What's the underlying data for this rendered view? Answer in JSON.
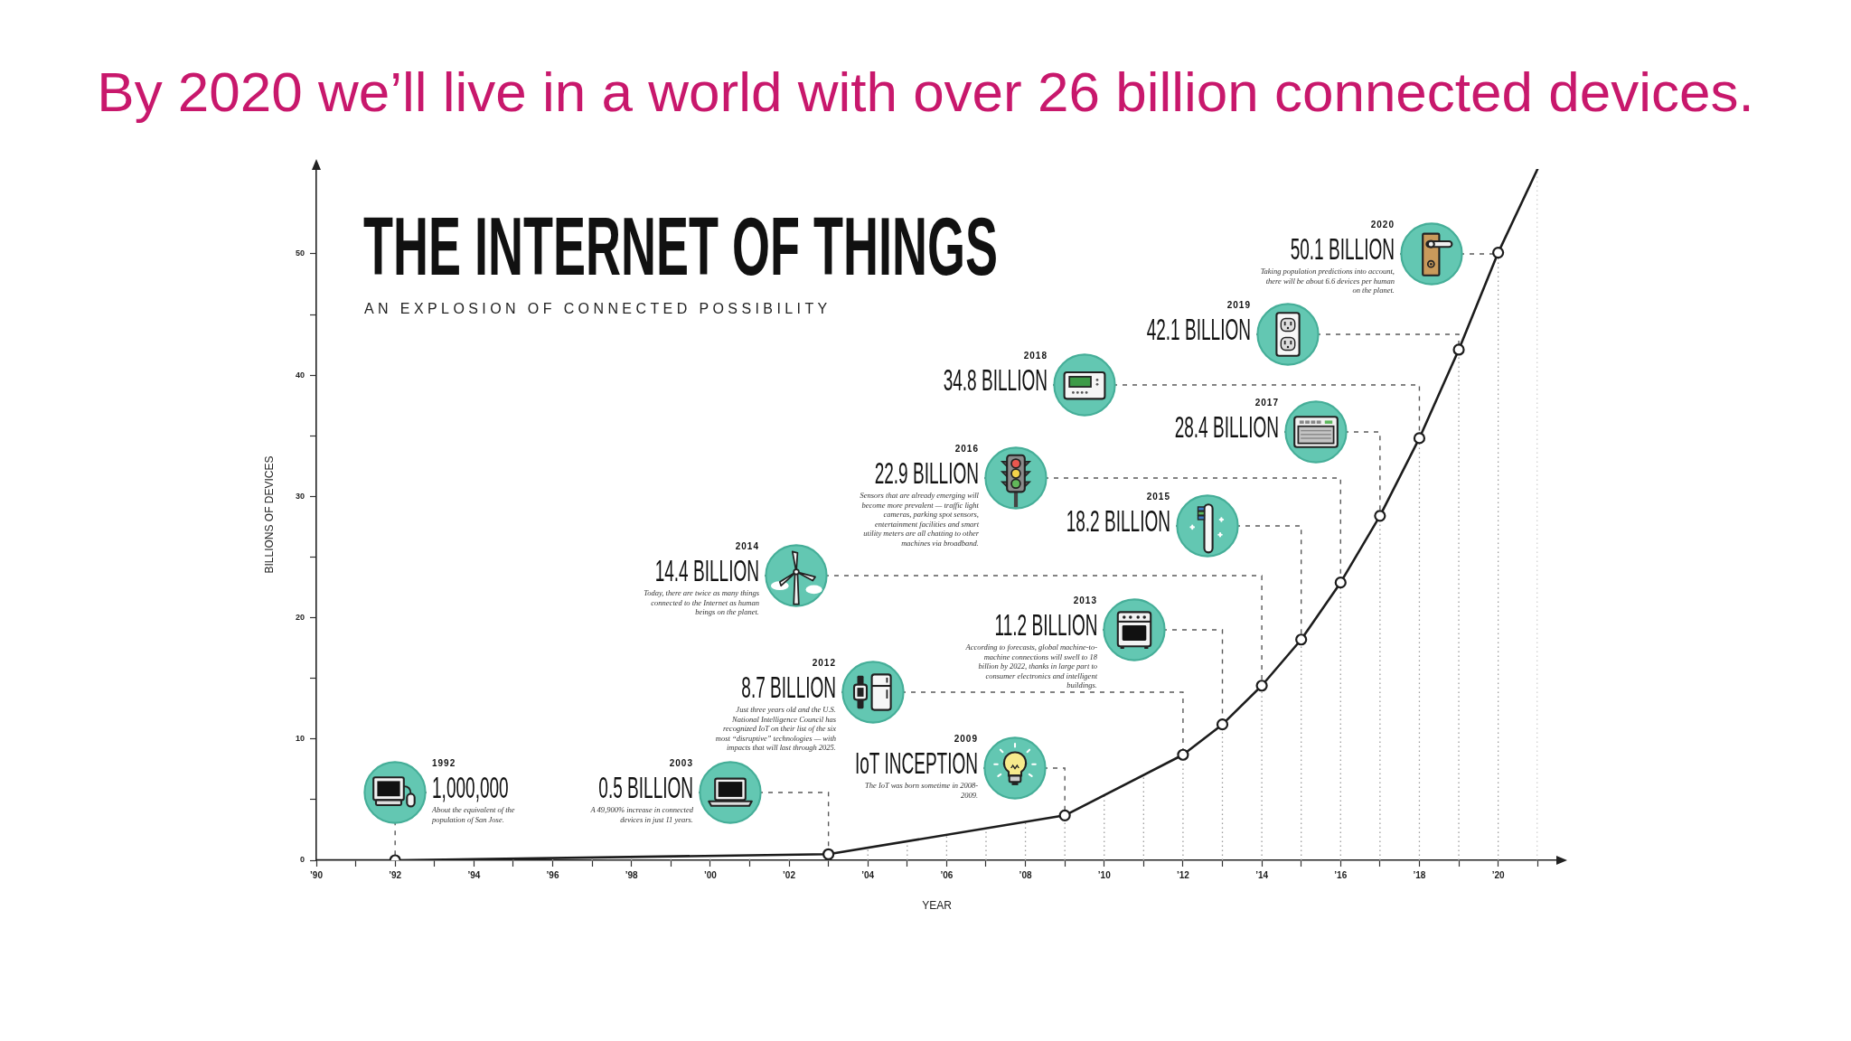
{
  "chart_data": {
    "type": "line",
    "title": "THE INTERNET OF THINGS",
    "subtitle": "AN EXPLOSION OF CONNECTED POSSIBILITY",
    "xlabel": "YEAR",
    "ylabel": "BILLIONS OF DEVICES",
    "x": [
      1990,
      1992,
      2003,
      2009,
      2012,
      2013,
      2014,
      2015,
      2016,
      2017,
      2018,
      2019,
      2020,
      2021
    ],
    "values": [
      0,
      0.001,
      0.5,
      3.7,
      8.7,
      11.2,
      14.4,
      18.2,
      22.9,
      28.4,
      34.8,
      42.1,
      50.1,
      57
    ],
    "color": "#1c1c1c",
    "xlim": [
      1990,
      2021.5
    ],
    "xticks": [
      {
        "value": 1990,
        "label": "’90"
      },
      {
        "value": 1991,
        "label": null
      },
      {
        "value": 1992,
        "label": "’92"
      },
      {
        "value": 1993,
        "label": null
      },
      {
        "value": 1994,
        "label": "’94"
      },
      {
        "value": 1995,
        "label": null
      },
      {
        "value": 1996,
        "label": "’96"
      },
      {
        "value": 1997,
        "label": null
      },
      {
        "value": 1998,
        "label": "’98"
      },
      {
        "value": 1999,
        "label": null
      },
      {
        "value": 2000,
        "label": "’00"
      },
      {
        "value": 2001,
        "label": null
      },
      {
        "value": 2002,
        "label": "’02"
      },
      {
        "value": 2003,
        "label": null
      },
      {
        "value": 2004,
        "label": "’04"
      },
      {
        "value": 2005,
        "label": null
      },
      {
        "value": 2006,
        "label": "’06"
      },
      {
        "value": 2007,
        "label": null
      },
      {
        "value": 2008,
        "label": "’08"
      },
      {
        "value": 2009,
        "label": null
      },
      {
        "value": 2010,
        "label": "’10"
      },
      {
        "value": 2011,
        "label": null
      },
      {
        "value": 2012,
        "label": "’12"
      },
      {
        "value": 2013,
        "label": null
      },
      {
        "value": 2014,
        "label": "’14"
      },
      {
        "value": 2015,
        "label": null
      },
      {
        "value": 2016,
        "label": "’16"
      },
      {
        "value": 2017,
        "label": null
      },
      {
        "value": 2018,
        "label": "’18"
      },
      {
        "value": 2019,
        "label": null
      },
      {
        "value": 2020,
        "label": "’20"
      },
      {
        "value": 2021,
        "label": null
      }
    ],
    "ylim": [
      0,
      57
    ],
    "yticks": [
      0,
      {
        "value": 5,
        "label": null
      },
      10,
      {
        "value": 15,
        "label": null
      },
      20,
      {
        "value": 25,
        "label": null
      },
      30,
      {
        "value": 35,
        "label": null
      },
      40,
      {
        "value": 45,
        "label": null
      },
      50
    ],
    "grid": "x",
    "marker": "circle",
    "line_style": "solid",
    "annotations": [
      "By 2020 we’ll live in a world with over 26 billion connected devices.",
      {
        "text": "1992\n1,000,000\nAbout the equivalent of the population of San Jose.",
        "x": 1992,
        "y": 0.001
      },
      {
        "text": "2003\n0.5 BILLION\nA 49,900% increase in connected devices in just 11 years.",
        "x": 2003,
        "y": 0.5
      },
      {
        "text": "2009\nIoT INCEPTION\nThe IoT was born sometime in 2008-2009.",
        "x": 2009,
        "y": 3.7
      },
      {
        "text": "2012\n8.7 BILLION\nJust three years old and the U.S. National Intelligence Council has recognized IoT on their list of the six most “disruptive” technologies — with impacts that will last through 2025.",
        "x": 2012,
        "y": 8.7
      },
      {
        "text": "2013\n11.2 BILLION\nAccording to forecasts, global machine-to-machine connections will swell to 18 billion by 2022, thanks in large part to consumer electronics and intelligent buildings.",
        "x": 2013,
        "y": 11.2
      },
      {
        "text": "2014\n14.4 BILLION\nToday, there are twice as many things connected to the Internet as human beings on the planet.",
        "x": 2014,
        "y": 14.4
      },
      {
        "text": "2015\n18.2 BILLION",
        "x": 2015,
        "y": 18.2
      },
      {
        "text": "2016\n22.9 BILLION\nSensors that are already emerging will become more prevalent — traffic light cameras, parking spot sensors, entertainment facilities and smart utility meters are all chatting to other machines via broadband.",
        "x": 2016,
        "y": 22.9
      },
      {
        "text": "2017\n28.4 BILLION",
        "x": 2017,
        "y": 28.4
      },
      {
        "text": "2018\n34.8 BILLION",
        "x": 2018,
        "y": 34.8
      },
      {
        "text": "2019\n42.1 BILLION",
        "x": 2019,
        "y": 42.1
      },
      {
        "text": "2020\n50.1 BILLION\nTaking population predictions into account, there will be about 6.6 devices per human on the planet.",
        "x": 2020,
        "y": 50.1
      }
    ]
  }
}
